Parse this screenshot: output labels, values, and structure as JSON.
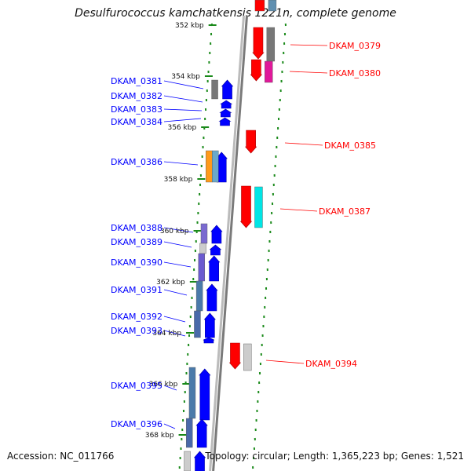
{
  "title": "Desulfurococcus kamchatkensis 1221n, complete genome",
  "footer": {
    "accession": "Accession: NC_011766",
    "topology": "Topology: circular; Length: 1,365,223 bp; Genes: 1,521"
  },
  "colors": {
    "backbone": "#7a7a7a",
    "forward": "#0000ff",
    "reverse": "#ff0000",
    "tick": "#1a8a1a",
    "cds_gray": "#777777",
    "cds_magenta": "#e0189a",
    "cds_cyan": "#00e5e5",
    "cds_orange": "#ff9a1a",
    "cds_lightgray": "#cccccc"
  },
  "kbp_markers": [
    "352 kbp",
    "354 kbp",
    "356 kbp",
    "358 kbp",
    "360 kbp",
    "362 kbp",
    "364 kbp",
    "366 kbp",
    "368 kbp"
  ],
  "left_labels": [
    {
      "text": "DKAM_0381",
      "strand": "forward"
    },
    {
      "text": "DKAM_0382",
      "strand": "forward"
    },
    {
      "text": "DKAM_0383",
      "strand": "forward"
    },
    {
      "text": "DKAM_0384",
      "strand": "forward"
    },
    {
      "text": "DKAM_0386",
      "strand": "forward"
    },
    {
      "text": "DKAM_0388",
      "strand": "forward"
    },
    {
      "text": "DKAM_0389",
      "strand": "forward"
    },
    {
      "text": "DKAM_0390",
      "strand": "forward"
    },
    {
      "text": "DKAM_0391",
      "strand": "forward"
    },
    {
      "text": "DKAM_0392",
      "strand": "forward"
    },
    {
      "text": "DKAM_0393",
      "strand": "forward"
    },
    {
      "text": "DKAM_0395",
      "strand": "forward"
    },
    {
      "text": "DKAM_0396",
      "strand": "forward"
    }
  ],
  "right_labels": [
    {
      "text": "DKAM_0379",
      "strand": "reverse"
    },
    {
      "text": "DKAM_0380",
      "strand": "reverse"
    },
    {
      "text": "DKAM_0385",
      "strand": "reverse"
    },
    {
      "text": "DKAM_0387",
      "strand": "reverse"
    },
    {
      "text": "DKAM_0394",
      "strand": "reverse"
    }
  ]
}
